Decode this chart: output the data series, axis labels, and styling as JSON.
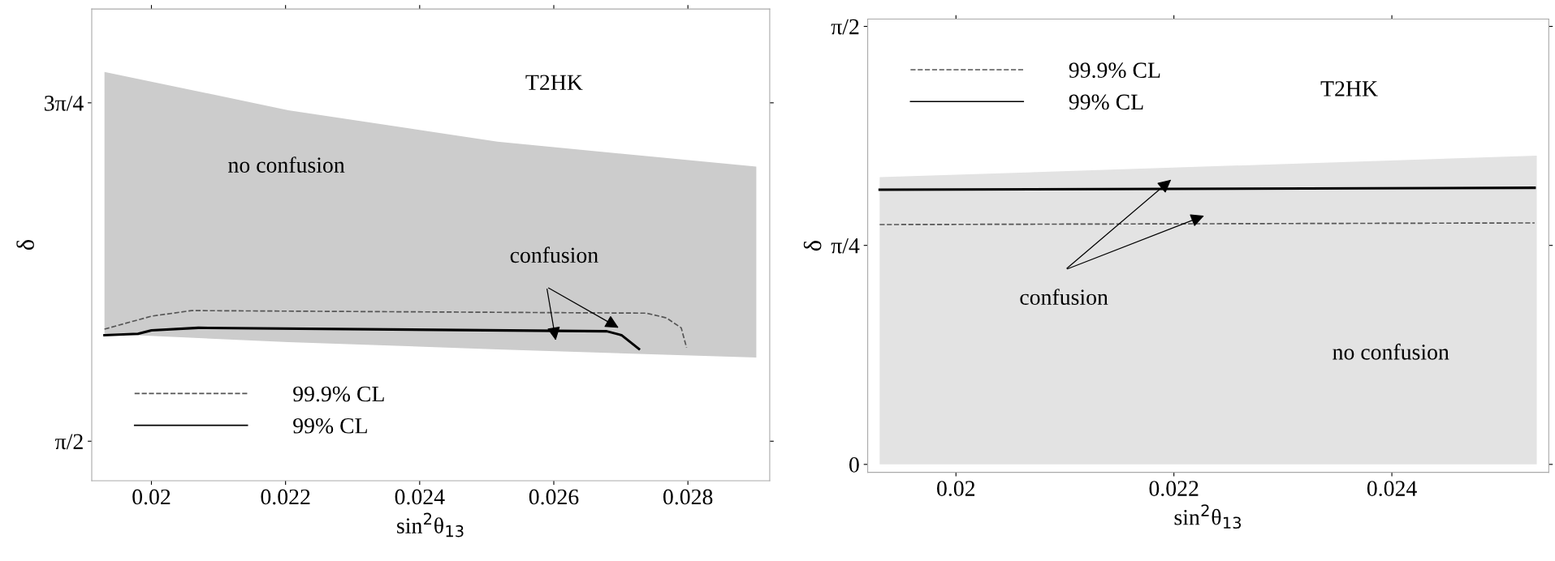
{
  "chart_data": [
    {
      "type": "line",
      "title": "T2HK",
      "xlabel": "sin$^{2}$θ$_{13}$",
      "ylabel": "δ",
      "xlim": [
        0.01911,
        0.02922
      ],
      "ylim": [
        1.479,
        2.574
      ],
      "xticks": [
        0.02,
        0.022,
        0.024,
        0.026,
        0.028
      ],
      "yticks": [
        {
          "value": 1.5708,
          "label": "π/2"
        },
        {
          "value": 2.3562,
          "label": "3π/4"
        }
      ],
      "legend": "bottom left",
      "grid": false,
      "series": [
        {
          "type": "area",
          "color": "#cccccc",
          "x": [
            0.0193,
            0.02204,
            0.02516,
            0.02902,
            0.02902,
            0.02516,
            0.02204,
            0.0193
          ],
          "values": [
            2.428,
            2.339,
            2.266,
            2.208,
            1.765,
            1.784,
            1.801,
            1.82
          ]
        },
        {
          "name": "99.9% CL",
          "color": "#555555",
          "line_style": "dashed",
          "x": [
            0.0193,
            0.02,
            0.0206,
            0.02738,
            0.02768,
            0.0279,
            0.02798
          ],
          "values": [
            1.831,
            1.861,
            1.874,
            1.868,
            1.857,
            1.834,
            1.788
          ]
        },
        {
          "name": "99% CL",
          "color": "#000000",
          "line_style": "solid",
          "x": [
            0.0193,
            0.0198,
            0.02,
            0.0207,
            0.02679,
            0.02701,
            0.02727
          ],
          "values": [
            1.817,
            1.82,
            1.828,
            1.834,
            1.826,
            1.817,
            1.785
          ]
        }
      ],
      "annotations": [
        "no confusion",
        "confusion"
      ]
    },
    {
      "type": "line",
      "title": "T2HK",
      "xlabel": "sin$^{2}$θ$_{13}$",
      "ylabel": "δ",
      "xlim": [
        0.01919,
        0.02544
      ],
      "ylim": [
        -0.0286,
        1.597
      ],
      "xticks": [
        0.02,
        0.022,
        0.024
      ],
      "yticks": [
        0,
        {
          "value": 0.7854,
          "label": "π/4"
        },
        {
          "value": 1.5708,
          "label": "π/2"
        }
      ],
      "legend": "top left",
      "grid": false,
      "series": [
        {
          "type": "area",
          "color": "#e3e3e3",
          "x": [
            0.0193,
            0.02533,
            0.02533,
            0.0193
          ],
          "values": [
            1.03,
            1.107,
            0,
            0
          ]
        },
        {
          "name": "99.9% CL",
          "color": "#555555",
          "line_style": "dashed",
          "x": [
            0.0193,
            0.02531
          ],
          "values": [
            0.86,
            0.866
          ]
        },
        {
          "name": "99% CL",
          "color": "#000000",
          "line_style": "solid",
          "x": [
            0.0193,
            0.02531
          ],
          "values": [
            0.985,
            0.992
          ]
        }
      ],
      "annotations": [
        "confusion",
        "no confusion"
      ]
    }
  ]
}
